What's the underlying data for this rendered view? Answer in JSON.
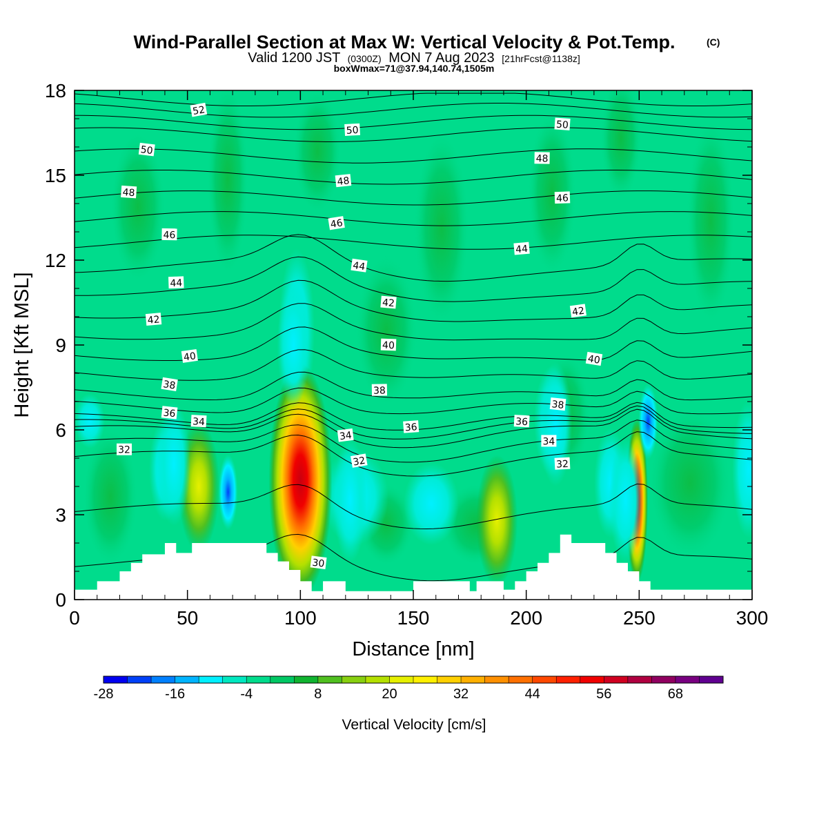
{
  "header": {
    "title": "Wind-Parallel Section at Max W: Vertical Velocity & Pot.Temp.",
    "title_mark": "(C)",
    "valid_part1": "Valid 1200 JST",
    "valid_utc": "(0300Z)",
    "valid_part2": "MON 7 Aug 2023",
    "forecast": "[21hrFcst@1138z]",
    "boxwmax": "boxWmax=71@37.94,140.74,1505m"
  },
  "chart_data": {
    "type": "heatmap",
    "xlabel": "Distance [nm]",
    "ylabel": "Height [Kft MSL]",
    "xlim": [
      0,
      300
    ],
    "ylim": [
      0,
      18
    ],
    "xticks": [
      0,
      50,
      100,
      150,
      200,
      250,
      300
    ],
    "yticks": [
      0,
      3,
      6,
      9,
      12,
      15,
      18
    ],
    "xtick_labels": [
      "0",
      "50",
      "100",
      "150",
      "200",
      "250",
      "300"
    ],
    "ytick_labels": [
      "0",
      "3",
      "6",
      "9",
      "12",
      "15",
      "18"
    ],
    "shaded_field": {
      "name": "Vertical Velocity",
      "background_value": 0,
      "features": [
        {
          "x": 100,
          "y": 4.2,
          "value": 60
        },
        {
          "x": 249,
          "y": 3.5,
          "value": 55
        },
        {
          "x": 55,
          "y": 4.0,
          "value": 20
        },
        {
          "x": 187,
          "y": 2.8,
          "value": 18
        },
        {
          "x": 68,
          "y": 3.8,
          "value": -16
        },
        {
          "x": 254,
          "y": 6.3,
          "value": -24
        },
        {
          "x": 97,
          "y": 9.0,
          "value": -8
        },
        {
          "x": 213,
          "y": 6.2,
          "value": -8
        },
        {
          "x": 122,
          "y": 3.5,
          "value": -4
        },
        {
          "x": 44,
          "y": 4.8,
          "value": -4
        },
        {
          "x": 244,
          "y": 3.5,
          "value": -10
        }
      ]
    },
    "colorbar": {
      "title": "Vertical Velocity [cm/s]",
      "min": -28,
      "max": 76,
      "step": 4,
      "tick_values": [
        -28,
        -16,
        -4,
        8,
        20,
        32,
        44,
        56,
        68
      ],
      "tick_labels": [
        "-28",
        "-16",
        "-4",
        "8",
        "20",
        "32",
        "44",
        "56",
        "68"
      ],
      "colors": [
        "#0000f0",
        "#0040f8",
        "#0080ff",
        "#00b4ff",
        "#00f0ff",
        "#00e8c0",
        "#00dc8c",
        "#00c864",
        "#10b430",
        "#50c020",
        "#88d010",
        "#b4e000",
        "#e6f000",
        "#fff000",
        "#ffd000",
        "#ffb000",
        "#ff9000",
        "#ff7000",
        "#ff4800",
        "#ff2000",
        "#f00000",
        "#d00020",
        "#b00040",
        "#900060",
        "#780080",
        "#600090"
      ]
    },
    "contour_field": {
      "name": "Pot.Temp.",
      "labels": [
        {
          "text": "52",
          "x": 55,
          "y": 17.3
        },
        {
          "text": "50",
          "x": 32,
          "y": 15.9
        },
        {
          "text": "48",
          "x": 24,
          "y": 14.4
        },
        {
          "text": "46",
          "x": 42,
          "y": 12.9
        },
        {
          "text": "44",
          "x": 45,
          "y": 11.2
        },
        {
          "text": "42",
          "x": 35,
          "y": 9.9
        },
        {
          "text": "40",
          "x": 51,
          "y": 8.6
        },
        {
          "text": "38",
          "x": 42,
          "y": 7.6
        },
        {
          "text": "36",
          "x": 42,
          "y": 6.6
        },
        {
          "text": "34",
          "x": 55,
          "y": 6.3
        },
        {
          "text": "32",
          "x": 22,
          "y": 5.3
        },
        {
          "text": "50",
          "x": 123,
          "y": 16.6
        },
        {
          "text": "48",
          "x": 119,
          "y": 14.8
        },
        {
          "text": "46",
          "x": 116,
          "y": 13.3
        },
        {
          "text": "44",
          "x": 126,
          "y": 11.8
        },
        {
          "text": "42",
          "x": 139,
          "y": 10.5
        },
        {
          "text": "40",
          "x": 139,
          "y": 9.0
        },
        {
          "text": "38",
          "x": 135,
          "y": 7.4
        },
        {
          "text": "36",
          "x": 149,
          "y": 6.1
        },
        {
          "text": "34",
          "x": 120,
          "y": 5.8
        },
        {
          "text": "32",
          "x": 126,
          "y": 4.9
        },
        {
          "text": "30",
          "x": 108,
          "y": 1.3
        },
        {
          "text": "50",
          "x": 216,
          "y": 16.8
        },
        {
          "text": "48",
          "x": 207,
          "y": 15.6
        },
        {
          "text": "46",
          "x": 216,
          "y": 14.2
        },
        {
          "text": "44",
          "x": 198,
          "y": 12.4
        },
        {
          "text": "42",
          "x": 223,
          "y": 10.2
        },
        {
          "text": "40",
          "x": 230,
          "y": 8.5
        },
        {
          "text": "38",
          "x": 214,
          "y": 6.9
        },
        {
          "text": "36",
          "x": 198,
          "y": 6.3
        },
        {
          "text": "34",
          "x": 210,
          "y": 5.6
        },
        {
          "text": "32",
          "x": 216,
          "y": 4.8
        }
      ]
    },
    "terrain": [
      {
        "x": 0,
        "h": 0.35
      },
      {
        "x": 9,
        "h": 0.35
      },
      {
        "x": 10,
        "h": 0.65
      },
      {
        "x": 19,
        "h": 0.65
      },
      {
        "x": 20,
        "h": 1.0
      },
      {
        "x": 24,
        "h": 1.0
      },
      {
        "x": 25,
        "h": 1.3
      },
      {
        "x": 29,
        "h": 1.3
      },
      {
        "x": 30,
        "h": 1.6
      },
      {
        "x": 39,
        "h": 1.6
      },
      {
        "x": 40,
        "h": 2.0
      },
      {
        "x": 44,
        "h": 2.0
      },
      {
        "x": 45,
        "h": 1.65
      },
      {
        "x": 51,
        "h": 1.65
      },
      {
        "x": 52,
        "h": 2.0
      },
      {
        "x": 84,
        "h": 2.0
      },
      {
        "x": 85,
        "h": 1.65
      },
      {
        "x": 89,
        "h": 1.65
      },
      {
        "x": 90,
        "h": 1.35
      },
      {
        "x": 94,
        "h": 1.35
      },
      {
        "x": 95,
        "h": 1.05
      },
      {
        "x": 99,
        "h": 1.05
      },
      {
        "x": 100,
        "h": 0.65
      },
      {
        "x": 104,
        "h": 0.65
      },
      {
        "x": 105,
        "h": 0.3
      },
      {
        "x": 109,
        "h": 0.3
      },
      {
        "x": 110,
        "h": 0.65
      },
      {
        "x": 119,
        "h": 0.65
      },
      {
        "x": 120,
        "h": 0.3
      },
      {
        "x": 149,
        "h": 0.3
      },
      {
        "x": 150,
        "h": 0.65
      },
      {
        "x": 174,
        "h": 0.65
      },
      {
        "x": 175,
        "h": 0.3
      },
      {
        "x": 177,
        "h": 0.3
      },
      {
        "x": 178,
        "h": 0.65
      },
      {
        "x": 189,
        "h": 0.65
      },
      {
        "x": 190,
        "h": 0.35
      },
      {
        "x": 194,
        "h": 0.35
      },
      {
        "x": 195,
        "h": 0.65
      },
      {
        "x": 199,
        "h": 0.65
      },
      {
        "x": 200,
        "h": 1.0
      },
      {
        "x": 204,
        "h": 1.0
      },
      {
        "x": 205,
        "h": 1.3
      },
      {
        "x": 209,
        "h": 1.3
      },
      {
        "x": 210,
        "h": 1.65
      },
      {
        "x": 214,
        "h": 1.65
      },
      {
        "x": 215,
        "h": 2.3
      },
      {
        "x": 219,
        "h": 2.3
      },
      {
        "x": 220,
        "h": 2.0
      },
      {
        "x": 234,
        "h": 2.0
      },
      {
        "x": 235,
        "h": 1.65
      },
      {
        "x": 239,
        "h": 1.65
      },
      {
        "x": 240,
        "h": 1.3
      },
      {
        "x": 244,
        "h": 1.3
      },
      {
        "x": 245,
        "h": 1.0
      },
      {
        "x": 249,
        "h": 1.0
      },
      {
        "x": 250,
        "h": 0.65
      },
      {
        "x": 254,
        "h": 0.65
      },
      {
        "x": 255,
        "h": 0.35
      },
      {
        "x": 300,
        "h": 0.35
      }
    ]
  }
}
